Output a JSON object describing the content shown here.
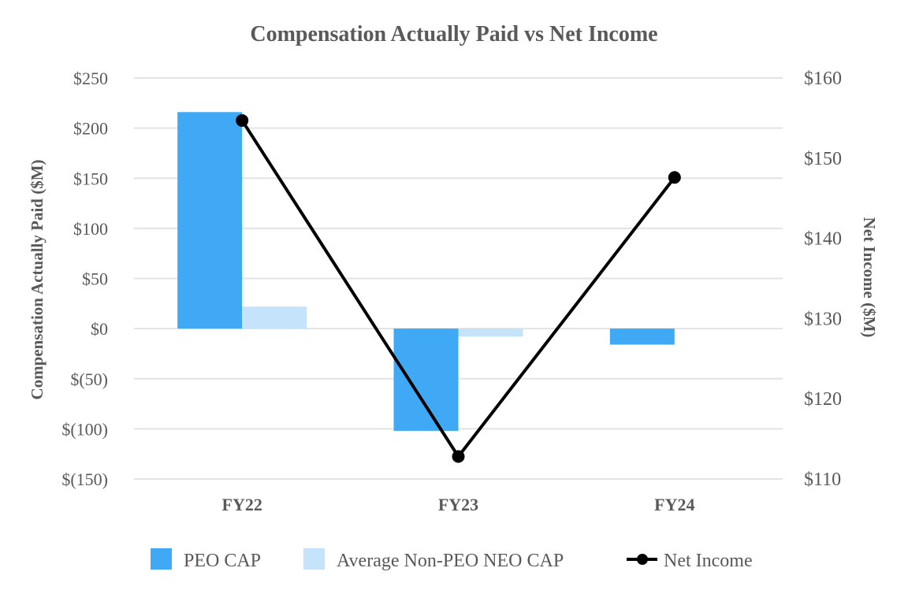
{
  "chart_data": {
    "type": "bar",
    "title": "Compensation Actually Paid vs Net Income",
    "categories": [
      "FY22",
      "FY23",
      "FY24"
    ],
    "series": [
      {
        "name": "PEO CAP",
        "kind": "bar",
        "axis": "left",
        "color": "#3fa9f5",
        "values": [
          216,
          -102,
          -16
        ]
      },
      {
        "name": "Average Non-PEO NEO CAP",
        "kind": "bar",
        "axis": "left",
        "color": "#c5e3fa",
        "values": [
          22,
          -8,
          0
        ]
      },
      {
        "name": "Net Income",
        "kind": "line",
        "axis": "right",
        "color": "#000000",
        "values": [
          154.7,
          112.8,
          147.6
        ]
      }
    ],
    "ylabel": "Compensation Actually Paid ($M)",
    "y2label": "Net Income ($M)",
    "ylim": [
      -150,
      250
    ],
    "y2lim": [
      110,
      160
    ],
    "yticks": [
      250,
      200,
      150,
      100,
      50,
      0,
      -50,
      -100,
      -150
    ],
    "ytick_labels": [
      "$250",
      "$200",
      "$150",
      "$100",
      "$50",
      "$0",
      "$(50)",
      "$(100)",
      "$(150)"
    ],
    "y2ticks": [
      160,
      150,
      140,
      130,
      120,
      110
    ],
    "y2tick_labels": [
      "$160",
      "$150",
      "$140",
      "$130",
      "$120",
      "$110"
    ],
    "grid": true,
    "legend_position": "bottom"
  }
}
